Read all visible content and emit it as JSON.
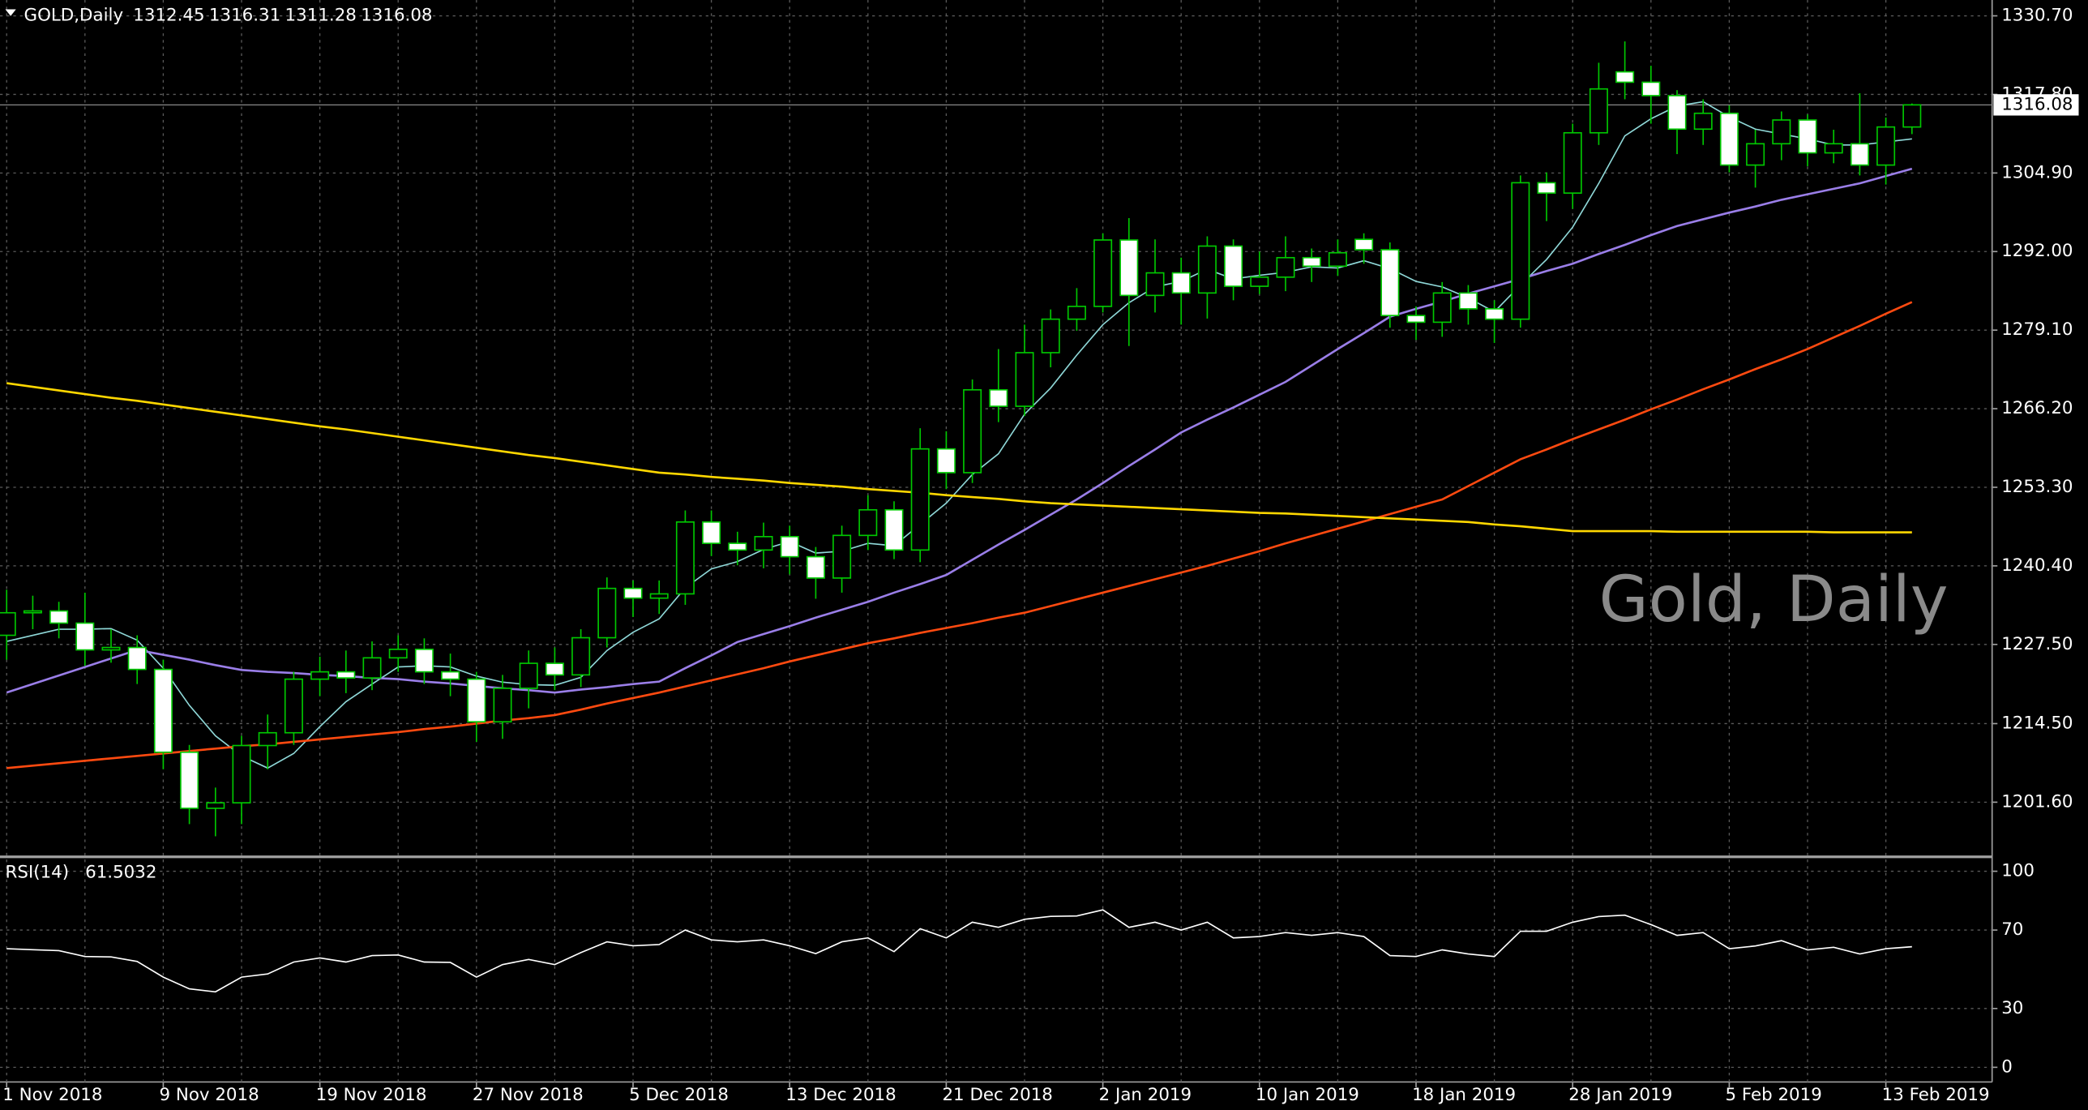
{
  "chart_data": [
    {
      "type": "candlestick",
      "title": "GOLD,Daily",
      "watermark": "Gold, Daily",
      "categories": [
        "1 Nov 2018",
        null,
        null,
        null,
        null,
        null,
        "9 Nov 2018",
        null,
        null,
        null,
        null,
        null,
        "19 Nov 2018",
        null,
        null,
        null,
        null,
        null,
        "27 Nov 2018",
        null,
        null,
        null,
        null,
        null,
        "5 Dec 2018",
        null,
        null,
        null,
        null,
        null,
        "13 Dec 2018",
        null,
        null,
        null,
        null,
        null,
        "21 Dec 2018",
        null,
        null,
        null,
        null,
        null,
        "2 Jan 2019",
        null,
        null,
        null,
        null,
        null,
        "10 Jan 2019",
        null,
        null,
        null,
        null,
        null,
        "18 Jan 2019",
        null,
        null,
        null,
        null,
        null,
        "28 Jan 2019",
        null,
        null,
        null,
        null,
        null,
        "5 Feb 2019",
        null,
        null,
        null,
        null,
        null,
        "13 Feb 2019",
        null
      ],
      "open": [
        1229,
        1232.7,
        1233,
        1231,
        1226.6,
        1227,
        1223.4,
        1209.8,
        1200.6,
        1201.5,
        1210.9,
        1213,
        1221.8,
        1223,
        1222,
        1225.3,
        1226.7,
        1223,
        1221.8,
        1214.8,
        1220.3,
        1224.4,
        1222.5,
        1228.6,
        1236.7,
        1235.1,
        1235.8,
        1247.6,
        1244.1,
        1243,
        1245.2,
        1241.9,
        1238.4,
        1245.4,
        1249.6,
        1243,
        1259.6,
        1255.7,
        1269.3,
        1266.6,
        1275.4,
        1280.9,
        1283,
        1293.9,
        1284.8,
        1288.5,
        1285.2,
        1292.9,
        1286.3,
        1287.8,
        1291,
        1289.6,
        1294,
        1292.3,
        1281.5,
        1280.4,
        1285.2,
        1282.6,
        1280.9,
        1303.3,
        1301.6,
        1311.5,
        1321.5,
        1319.8,
        1317.6,
        1312.1,
        1314.7,
        1306.2,
        1309.7,
        1313.6,
        1308.2,
        1309.7,
        1306.2,
        1312.45
      ],
      "high": [
        1236.5,
        1235.5,
        1234.5,
        1236,
        1230,
        1229,
        1225,
        1211,
        1204,
        1212.5,
        1216,
        1223,
        1225.5,
        1226.5,
        1228,
        1229,
        1228.5,
        1226,
        1223,
        1222.5,
        1226.5,
        1227,
        1230,
        1238.5,
        1238,
        1238,
        1249.5,
        1249.5,
        1246,
        1247.5,
        1247,
        1243.5,
        1247,
        1252,
        1251,
        1263,
        1262.5,
        1271,
        1276,
        1280,
        1282.5,
        1286,
        1295,
        1297.5,
        1294,
        1291,
        1294.5,
        1294,
        1292,
        1294.5,
        1292.5,
        1294,
        1295,
        1293.5,
        1283,
        1287,
        1286.5,
        1284,
        1304.5,
        1305,
        1313,
        1323,
        1326.5,
        1322.5,
        1318.5,
        1317,
        1316,
        1312,
        1315,
        1314.5,
        1312,
        1318,
        1314,
        1316.31
      ],
      "low": [
        1225,
        1230,
        1228.5,
        1224,
        1224.5,
        1221,
        1207,
        1198,
        1196,
        1198,
        1207,
        1211,
        1219,
        1219.5,
        1220,
        1223,
        1221,
        1219,
        1211.5,
        1212,
        1217,
        1220,
        1220.5,
        1227,
        1232,
        1232.5,
        1234,
        1242,
        1240.5,
        1240,
        1239,
        1235,
        1236,
        1243,
        1241.5,
        1241,
        1253,
        1254,
        1264,
        1265,
        1273,
        1279,
        1282,
        1276.5,
        1282,
        1280,
        1281,
        1284,
        1285,
        1285.5,
        1287,
        1288,
        1290,
        1279.5,
        1277.5,
        1278,
        1280,
        1277,
        1279.5,
        1297,
        1299,
        1309.5,
        1317,
        1313,
        1308,
        1309.5,
        1305,
        1302.5,
        1307,
        1306,
        1306.5,
        1304.5,
        1303,
        1311.28
      ],
      "close": [
        1232.7,
        1233,
        1231,
        1226.6,
        1227,
        1223.4,
        1209.8,
        1200.6,
        1201.5,
        1210.9,
        1213,
        1221.8,
        1223,
        1222,
        1225.3,
        1226.7,
        1223,
        1221.8,
        1214.8,
        1220.3,
        1224.4,
        1222.5,
        1228.6,
        1236.7,
        1235.1,
        1235.8,
        1247.6,
        1244.1,
        1243,
        1245.2,
        1241.9,
        1238.4,
        1245.4,
        1249.6,
        1243,
        1259.6,
        1255.7,
        1269.3,
        1266.6,
        1275.4,
        1280.9,
        1283,
        1293.9,
        1284.8,
        1288.5,
        1285.2,
        1292.9,
        1286.3,
        1287.8,
        1291,
        1289.6,
        1291.8,
        1292.3,
        1281.5,
        1280.4,
        1285.2,
        1282.6,
        1280.9,
        1303.3,
        1301.6,
        1311.5,
        1318.7,
        1319.8,
        1317.6,
        1312.1,
        1314.7,
        1306.2,
        1309.7,
        1313.6,
        1308.2,
        1309.7,
        1306.2,
        1312.45,
        1316.08
      ],
      "up_color": "#00c800",
      "down_color": "#ffffff",
      "series": [
        {
          "color": "#8fd8d8",
          "values": [
            1228,
            1229,
            1230,
            1230,
            1230.1,
            1228.2,
            1223.6,
            1217.5,
            1212.5,
            1209.2,
            1207.2,
            1209.6,
            1214,
            1218.1,
            1221,
            1223.8,
            1224,
            1223.8,
            1222.3,
            1221.3,
            1220.9,
            1220.8,
            1222.1,
            1226.5,
            1229.5,
            1231.7,
            1236.8,
            1239.9,
            1241.1,
            1243.1,
            1244.4,
            1242.5,
            1242.8,
            1244.1,
            1243.7,
            1247.2,
            1250.7,
            1255.4,
            1258.8,
            1265.3,
            1269.6,
            1275,
            1280,
            1283.6,
            1286.2,
            1287.1,
            1289.1,
            1287.5,
            1288.1,
            1288.6,
            1289.5,
            1289.3,
            1290.5,
            1289.2,
            1287.1,
            1286.2,
            1284.4,
            1282.1,
            1286.5,
            1290.7,
            1296,
            1303.2,
            1311,
            1313.8,
            1315.9,
            1316.6,
            1314.1,
            1312.1,
            1311.3,
            1310.5,
            1309.5,
            1309.5,
            1310,
            1310.5
          ]
        },
        {
          "color": "#9a7ee8",
          "values": [
            1219.6,
            1221,
            1222.4,
            1223.8,
            1225.2,
            1226.6,
            1225.8,
            1225,
            1224.1,
            1223.3,
            1223,
            1222.8,
            1222.5,
            1222.3,
            1222,
            1221.8,
            1221.4,
            1221.1,
            1220.7,
            1220.3,
            1220,
            1219.6,
            1220.1,
            1220.5,
            1221,
            1221.4,
            1223.6,
            1225.7,
            1227.9,
            1229.2,
            1230.5,
            1231.9,
            1233.2,
            1234.5,
            1236,
            1237.4,
            1238.9,
            1241.4,
            1243.9,
            1246.3,
            1248.8,
            1251.3,
            1254,
            1256.8,
            1259.5,
            1262.3,
            1264.4,
            1266.4,
            1268.5,
            1270.6,
            1273.3,
            1276,
            1278.6,
            1281.3,
            1282.6,
            1283.8,
            1285.1,
            1286.3,
            1287.5,
            1288.8,
            1290,
            1291.6,
            1293.1,
            1294.7,
            1296.2,
            1297.3,
            1298.4,
            1299.4,
            1300.5,
            1301.4,
            1302.3,
            1303.2,
            1304.4,
            1305.6
          ]
        },
        {
          "color": "#ff4a10",
          "values": [
            1207.2,
            1207.6,
            1208,
            1208.4,
            1208.8,
            1209.2,
            1209.6,
            1210,
            1210.4,
            1210.8,
            1211.1,
            1211.5,
            1211.9,
            1212.3,
            1212.7,
            1213.1,
            1213.6,
            1214,
            1214.5,
            1215,
            1215.4,
            1215.9,
            1216.8,
            1217.8,
            1218.7,
            1219.6,
            1220.6,
            1221.6,
            1222.6,
            1223.6,
            1224.7,
            1225.7,
            1226.7,
            1227.7,
            1228.5,
            1229.4,
            1230.2,
            1231,
            1231.9,
            1232.7,
            1233.8,
            1234.9,
            1236,
            1237.1,
            1238.2,
            1239.3,
            1240.4,
            1241.6,
            1242.8,
            1244.1,
            1245.3,
            1246.5,
            1247.7,
            1248.9,
            1250.1,
            1251.3,
            1253.5,
            1255.7,
            1257.9,
            1259.5,
            1261.2,
            1262.8,
            1264.4,
            1266.1,
            1267.7,
            1269.4,
            1271,
            1272.7,
            1274.3,
            1276,
            1277.9,
            1279.8,
            1281.8,
            1283.7
          ]
        },
        {
          "color": "#ffd700",
          "values": [
            1270.4,
            1269.8,
            1269.2,
            1268.6,
            1268,
            1267.5,
            1266.9,
            1266.3,
            1265.7,
            1265.1,
            1264.5,
            1263.9,
            1263.3,
            1262.8,
            1262.2,
            1261.6,
            1261,
            1260.4,
            1259.8,
            1259.2,
            1258.6,
            1258.1,
            1257.5,
            1256.9,
            1256.3,
            1255.7,
            1255.4,
            1255,
            1254.7,
            1254.4,
            1254,
            1253.7,
            1253.4,
            1253,
            1252.7,
            1252.4,
            1252,
            1251.7,
            1251.4,
            1251,
            1250.7,
            1250.5,
            1250.3,
            1250.1,
            1249.9,
            1249.7,
            1249.5,
            1249.3,
            1249.1,
            1249,
            1248.8,
            1248.6,
            1248.4,
            1248.2,
            1248,
            1247.8,
            1247.6,
            1247.2,
            1246.9,
            1246.5,
            1246.1,
            1246.1,
            1246.1,
            1246.1,
            1246,
            1246,
            1246,
            1246,
            1246,
            1246,
            1245.9,
            1245.9,
            1245.9,
            1245.9
          ]
        }
      ],
      "ylim": [
        1192.85,
        1333.3
      ],
      "yticks": [
        {
          "value": 1201.6,
          "label": "1201.60"
        },
        {
          "value": 1214.5,
          "label": "1214.50"
        },
        {
          "value": 1227.5,
          "label": "1227.50"
        },
        {
          "value": 1240.4,
          "label": "1240.40"
        },
        {
          "value": 1253.3,
          "label": "1253.30"
        },
        {
          "value": 1266.2,
          "label": "1266.20"
        },
        {
          "value": 1279.1,
          "label": "1279.10"
        },
        {
          "value": 1292,
          "label": "1292.00"
        },
        {
          "value": 1304.9,
          "label": "1304.90"
        },
        {
          "value": 1317.8,
          "label": "1317.80"
        },
        {
          "value": 1330.7,
          "label": "1330.70"
        }
      ],
      "grid": true
    },
    {
      "type": "line",
      "title": "RSI(14)",
      "color": "#ffffff",
      "values": [
        60.5,
        60,
        59.5,
        56.5,
        56.3,
        54,
        46,
        40,
        38.5,
        46,
        47.6,
        53.7,
        55.8,
        53.7,
        57,
        57.3,
        53.7,
        53.5,
        46,
        52.4,
        55,
        52.4,
        58.5,
        64,
        62,
        62.6,
        70,
        65,
        64,
        65,
        62,
        58,
        64,
        66,
        59,
        70.7,
        66,
        74,
        71.4,
        75.5,
        77,
        77.2,
        80.3,
        71.4,
        74,
        70,
        74,
        66,
        66.7,
        68.7,
        67.3,
        68.7,
        66.7,
        57,
        56.5,
        59.9,
        57.8,
        56.5,
        69.4,
        69.4,
        74,
        76.9,
        77.6,
        72.8,
        67.3,
        68.7,
        60.5,
        61.9,
        64.6,
        59.9,
        61.2,
        57.8,
        60.5,
        61.5032
      ],
      "ylim": [
        -7.5,
        106
      ],
      "yticks": [
        0,
        30,
        70,
        100
      ],
      "grid": true
    }
  ]
}
